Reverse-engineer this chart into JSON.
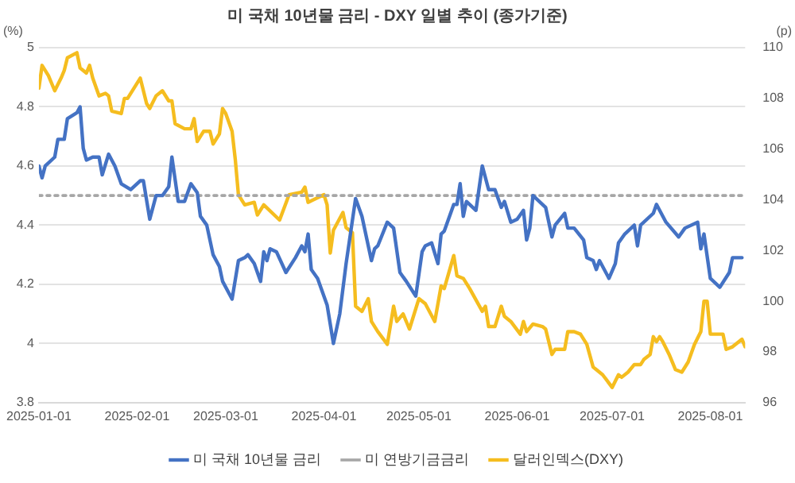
{
  "chart_data": {
    "type": "line",
    "title": "미 국채 10년물 금리 - DXY 일별 추이 (종가기준)",
    "ylabel": "(%)",
    "y2label": "(p)",
    "xlim": [
      "2025-01-01",
      "2025-08-12"
    ],
    "xticks": [
      "2025-01-01",
      "2025-02-01",
      "2025-03-01",
      "2025-04-01",
      "2025-05-01",
      "2025-06-01",
      "2025-07-01",
      "2025-08-01"
    ],
    "ylim": [
      3.8,
      5
    ],
    "yticks": [
      3.8,
      4,
      4.2,
      4.4,
      4.6,
      4.8,
      5
    ],
    "y2lim": [
      96,
      110
    ],
    "y2ticks": [
      96,
      98,
      100,
      102,
      104,
      106,
      108,
      110
    ],
    "grid": "y",
    "legend": "bottom",
    "marker": "none",
    "series": [
      {
        "name": "미 국채 10년물 금리",
        "color": "#4472c4",
        "line_style": "solid",
        "x": [
          "2025-01-01",
          "2025-01-02",
          "2025-01-03",
          "2025-01-06",
          "2025-01-07",
          "2025-01-09",
          "2025-01-10",
          "2025-01-13",
          "2025-01-14",
          "2025-01-15",
          "2025-01-16",
          "2025-01-18",
          "2025-01-20",
          "2025-01-21",
          "2025-01-23",
          "2025-01-25",
          "2025-01-27",
          "2025-01-30",
          "2025-02-02",
          "2025-02-03",
          "2025-02-05",
          "2025-02-07",
          "2025-02-09",
          "2025-02-11",
          "2025-02-12",
          "2025-02-14",
          "2025-02-16",
          "2025-02-18",
          "2025-02-20",
          "2025-02-21",
          "2025-02-23",
          "2025-02-25",
          "2025-02-27",
          "2025-02-28",
          "2025-03-03",
          "2025-03-05",
          "2025-03-07",
          "2025-03-08",
          "2025-03-10",
          "2025-03-12",
          "2025-03-13",
          "2025-03-14",
          "2025-03-15",
          "2025-03-17",
          "2025-03-20",
          "2025-03-23",
          "2025-03-25",
          "2025-03-26",
          "2025-03-27",
          "2025-03-28",
          "2025-03-30",
          "2025-04-02",
          "2025-04-04",
          "2025-04-06",
          "2025-04-08",
          "2025-04-11",
          "2025-04-13",
          "2025-04-16",
          "2025-04-17",
          "2025-04-18",
          "2025-04-21",
          "2025-04-23",
          "2025-04-25",
          "2025-04-27",
          "2025-04-30",
          "2025-05-02",
          "2025-05-03",
          "2025-05-05",
          "2025-05-07",
          "2025-05-08",
          "2025-05-09",
          "2025-05-12",
          "2025-05-13",
          "2025-05-14",
          "2025-05-15",
          "2025-05-16",
          "2025-05-19",
          "2025-05-21",
          "2025-05-23",
          "2025-05-25",
          "2025-05-27",
          "2025-05-28",
          "2025-05-30",
          "2025-06-01",
          "2025-06-03",
          "2025-06-04",
          "2025-06-05",
          "2025-06-06",
          "2025-06-09",
          "2025-06-10",
          "2025-06-12",
          "2025-06-13",
          "2025-06-16",
          "2025-06-17",
          "2025-06-19",
          "2025-06-22",
          "2025-06-23",
          "2025-06-25",
          "2025-06-26",
          "2025-06-27",
          "2025-06-30",
          "2025-07-02",
          "2025-07-03",
          "2025-07-05",
          "2025-07-08",
          "2025-07-09",
          "2025-07-10",
          "2025-07-14",
          "2025-07-15",
          "2025-07-16",
          "2025-07-18",
          "2025-07-22",
          "2025-07-24",
          "2025-07-28",
          "2025-07-29",
          "2025-07-30",
          "2025-08-01",
          "2025-08-04",
          "2025-08-07",
          "2025-08-08",
          "2025-08-11"
        ],
        "values": [
          4.6,
          4.56,
          4.6,
          4.63,
          4.69,
          4.69,
          4.76,
          4.78,
          4.8,
          4.66,
          4.62,
          4.63,
          4.63,
          4.57,
          4.64,
          4.6,
          4.54,
          4.52,
          4.55,
          4.55,
          4.42,
          4.5,
          4.5,
          4.53,
          4.63,
          4.48,
          4.48,
          4.54,
          4.51,
          4.43,
          4.4,
          4.3,
          4.26,
          4.21,
          4.15,
          4.28,
          4.29,
          4.3,
          4.27,
          4.21,
          4.31,
          4.28,
          4.32,
          4.31,
          4.24,
          4.29,
          4.33,
          4.31,
          4.37,
          4.25,
          4.22,
          4.13,
          4.0,
          4.1,
          4.27,
          4.49,
          4.43,
          4.28,
          4.32,
          4.33,
          4.41,
          4.39,
          4.24,
          4.21,
          4.16,
          4.31,
          4.33,
          4.34,
          4.27,
          4.37,
          4.38,
          4.47,
          4.47,
          4.54,
          4.43,
          4.48,
          4.45,
          4.6,
          4.52,
          4.52,
          4.46,
          4.48,
          4.41,
          4.42,
          4.45,
          4.35,
          4.39,
          4.5,
          4.47,
          4.46,
          4.36,
          4.4,
          4.44,
          4.39,
          4.39,
          4.35,
          4.29,
          4.28,
          4.25,
          4.28,
          4.22,
          4.27,
          4.34,
          4.37,
          4.4,
          4.33,
          4.4,
          4.44,
          4.47,
          4.45,
          4.41,
          4.36,
          4.39,
          4.41,
          4.32,
          4.37,
          4.22,
          4.19,
          4.24,
          4.29,
          4.29
        ]
      },
      {
        "name": "미 연방기금금리",
        "color": "#a6a6a6",
        "line_style": "dotted",
        "x": [
          "2025-01-01",
          "2025-08-11"
        ],
        "values": [
          4.5,
          4.5
        ]
      },
      {
        "name": "달러인덱스(DXY)",
        "color": "#f5bd1f",
        "line_style": "solid",
        "axis": "y2",
        "x": [
          "2025-01-01",
          "2025-01-02",
          "2025-01-04",
          "2025-01-06",
          "2025-01-08",
          "2025-01-09",
          "2025-01-10",
          "2025-01-13",
          "2025-01-14",
          "2025-01-16",
          "2025-01-17",
          "2025-01-18",
          "2025-01-20",
          "2025-01-22",
          "2025-01-23",
          "2025-01-24",
          "2025-01-27",
          "2025-01-28",
          "2025-01-29",
          "2025-01-31",
          "2025-02-02",
          "2025-02-04",
          "2025-02-05",
          "2025-02-07",
          "2025-02-09",
          "2025-02-11",
          "2025-02-12",
          "2025-02-13",
          "2025-02-16",
          "2025-02-18",
          "2025-02-19",
          "2025-02-20",
          "2025-02-22",
          "2025-02-24",
          "2025-02-25",
          "2025-02-27",
          "2025-02-28",
          "2025-03-01",
          "2025-03-03",
          "2025-03-04",
          "2025-03-05",
          "2025-03-07",
          "2025-03-10",
          "2025-03-11",
          "2025-03-13",
          "2025-03-18",
          "2025-03-21",
          "2025-03-25",
          "2025-03-26",
          "2025-03-27",
          "2025-04-01",
          "2025-04-02",
          "2025-04-03",
          "2025-04-04",
          "2025-04-07",
          "2025-04-08",
          "2025-04-10",
          "2025-04-11",
          "2025-04-13",
          "2025-04-15",
          "2025-04-16",
          "2025-04-18",
          "2025-04-21",
          "2025-04-23",
          "2025-04-24",
          "2025-04-26",
          "2025-04-28",
          "2025-05-01",
          "2025-05-03",
          "2025-05-06",
          "2025-05-08",
          "2025-05-09",
          "2025-05-12",
          "2025-05-13",
          "2025-05-15",
          "2025-05-17",
          "2025-05-21",
          "2025-05-22",
          "2025-05-23",
          "2025-05-25",
          "2025-05-27",
          "2025-05-28",
          "2025-05-30",
          "2025-06-02",
          "2025-06-03",
          "2025-06-04",
          "2025-06-06",
          "2025-06-09",
          "2025-06-10",
          "2025-06-12",
          "2025-06-13",
          "2025-06-16",
          "2025-06-17",
          "2025-06-19",
          "2025-06-21",
          "2025-06-23",
          "2025-06-25",
          "2025-06-26",
          "2025-06-28",
          "2025-07-01",
          "2025-07-03",
          "2025-07-04",
          "2025-07-06",
          "2025-07-08",
          "2025-07-10",
          "2025-07-11",
          "2025-07-13",
          "2025-07-14",
          "2025-07-15",
          "2025-07-16",
          "2025-07-17",
          "2025-07-19",
          "2025-07-21",
          "2025-07-23",
          "2025-07-25",
          "2025-07-27",
          "2025-07-29",
          "2025-07-30",
          "2025-07-31",
          "2025-08-01",
          "2025-08-03",
          "2025-08-05",
          "2025-08-06",
          "2025-08-08",
          "2025-08-11",
          "2025-08-12"
        ],
        "values": [
          108.4,
          109.3,
          108.9,
          108.3,
          108.8,
          109.1,
          109.6,
          109.8,
          109.2,
          109.0,
          109.3,
          108.8,
          108.1,
          108.2,
          108.1,
          107.5,
          107.4,
          108.0,
          108.0,
          108.4,
          108.8,
          107.8,
          107.6,
          108.1,
          108.3,
          107.9,
          107.9,
          107.0,
          106.8,
          106.8,
          107.2,
          106.3,
          106.7,
          106.7,
          106.2,
          106.6,
          107.6,
          107.4,
          106.7,
          105.6,
          104.2,
          103.8,
          103.9,
          103.4,
          103.8,
          103.2,
          104.2,
          104.3,
          104.5,
          103.9,
          104.2,
          103.8,
          101.9,
          102.8,
          103.5,
          102.9,
          102.7,
          99.8,
          99.6,
          100.1,
          99.2,
          98.8,
          98.3,
          99.8,
          99.2,
          99.5,
          98.9,
          100.1,
          99.9,
          99.2,
          100.6,
          100.5,
          101.8,
          101.0,
          100.9,
          100.5,
          99.6,
          99.8,
          99.0,
          99.0,
          99.8,
          99.4,
          99.2,
          98.7,
          99.2,
          98.8,
          99.1,
          99.0,
          98.9,
          97.9,
          98.1,
          98.1,
          98.8,
          98.8,
          98.7,
          98.3,
          97.4,
          97.3,
          97.1,
          96.6,
          97.1,
          97.0,
          97.2,
          97.5,
          97.5,
          97.7,
          97.9,
          98.6,
          98.4,
          98.6,
          98.4,
          97.9,
          97.3,
          97.2,
          97.6,
          98.3,
          98.8,
          100.0,
          100.0,
          98.7,
          98.7,
          98.7,
          98.1,
          98.2,
          98.5,
          98.2
        ]
      }
    ]
  }
}
